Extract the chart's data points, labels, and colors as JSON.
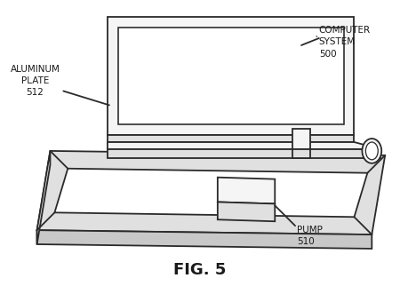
{
  "background_color": "#ffffff",
  "line_color": "#2a2a2a",
  "line_width": 1.3,
  "fill_white": "#ffffff",
  "fill_light": "#f5f5f5",
  "fill_mid": "#e0e0e0",
  "fill_dark": "#c8c8c8",
  "title": "FIG. 5",
  "title_fontsize": 13,
  "label_fontsize": 7.5,
  "labels": {
    "computer_system": "COMPUTER\nSYSTEM\n500",
    "aluminum_plate": "ALUMINUM\nPLATE\n512",
    "pump": "PUMP\n510"
  }
}
